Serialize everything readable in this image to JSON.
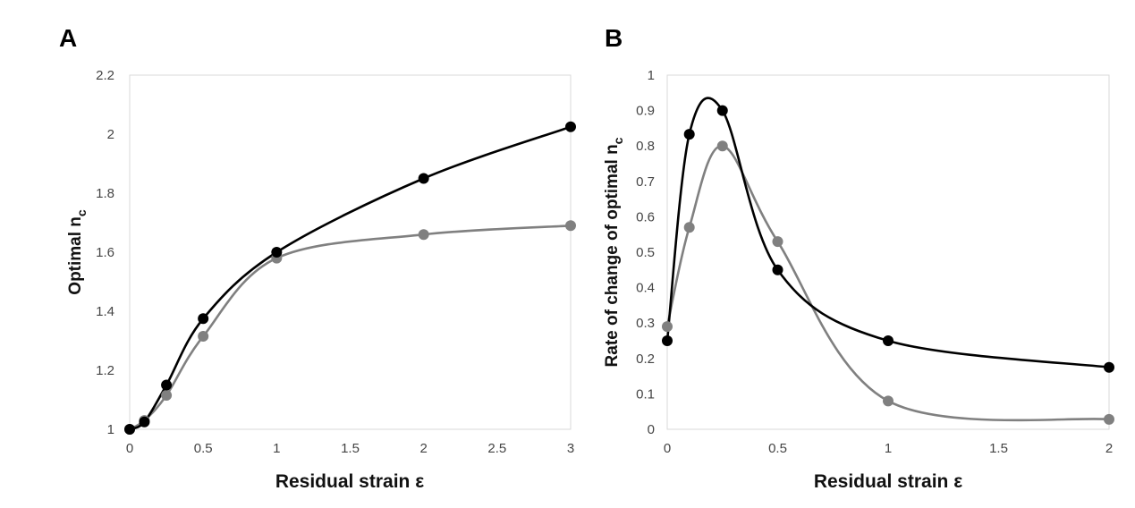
{
  "chart_data": [
    {
      "panel": "A",
      "type": "line",
      "smooth": true,
      "xlabel": "Residual strain ε",
      "ylabel_main": "Optimal n",
      "ylabel_sub": "c",
      "xlim": [
        0,
        3
      ],
      "ylim": [
        1,
        2.2
      ],
      "xticks": [
        "0",
        "0.5",
        "1",
        "1.5",
        "2",
        "2.5",
        "3"
      ],
      "yticks": [
        "1",
        "1.2",
        "1.4",
        "1.6",
        "1.8",
        "2",
        "2.2"
      ],
      "grid": false,
      "legend": "none",
      "series": [
        {
          "color": "#000000",
          "x": [
            0,
            0.1,
            0.25,
            0.5,
            1,
            2,
            3
          ],
          "y": [
            1.0,
            1.025,
            1.15,
            1.375,
            1.6,
            1.85,
            2.025
          ]
        },
        {
          "color": "#808080",
          "x": [
            0,
            0.1,
            0.25,
            0.5,
            1,
            2,
            3
          ],
          "y": [
            1.0,
            1.03,
            1.115,
            1.315,
            1.58,
            1.66,
            1.69
          ]
        }
      ]
    },
    {
      "panel": "B",
      "type": "line",
      "smooth": true,
      "xlabel": "Residual strain ε",
      "ylabel_main": "Rate of change of optimal n",
      "ylabel_sub": "c",
      "xlim": [
        0,
        2
      ],
      "ylim": [
        0,
        1
      ],
      "xticks": [
        "0",
        "0.5",
        "1",
        "1.5",
        "2"
      ],
      "yticks": [
        "0",
        "0.1",
        "0.2",
        "0.3",
        "0.4",
        "0.5",
        "0.6",
        "0.7",
        "0.8",
        "0.9",
        "1"
      ],
      "grid": false,
      "legend": "none",
      "series": [
        {
          "color": "#000000",
          "x": [
            0,
            0.1,
            0.25,
            0.5,
            1,
            2
          ],
          "y": [
            0.25,
            0.833,
            0.9,
            0.45,
            0.25,
            0.175
          ]
        },
        {
          "color": "#808080",
          "x": [
            0,
            0.1,
            0.25,
            0.5,
            1,
            2
          ],
          "y": [
            0.29,
            0.57,
            0.8,
            0.53,
            0.08,
            0.028
          ]
        }
      ]
    }
  ]
}
